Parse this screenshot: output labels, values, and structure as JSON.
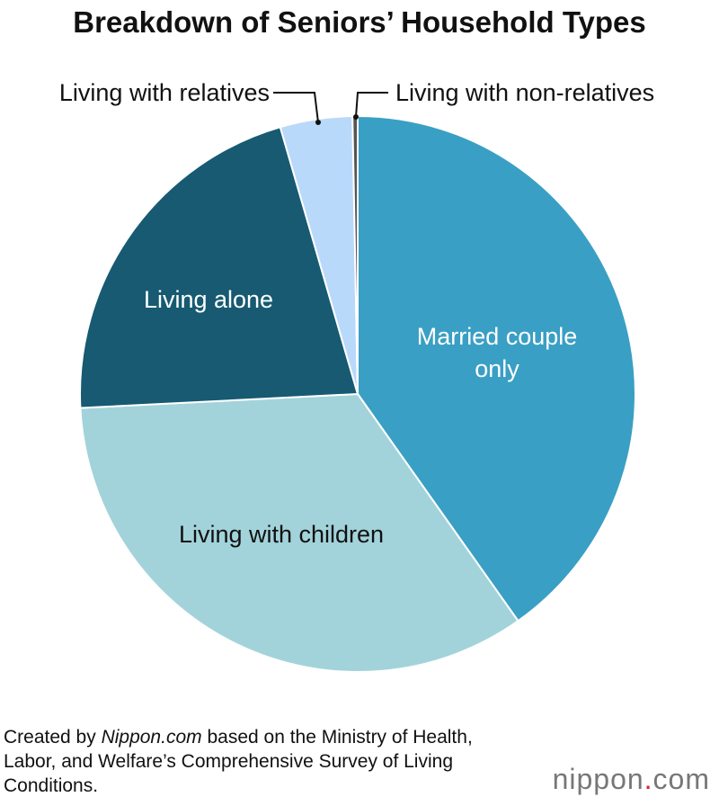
{
  "chart_data": {
    "type": "pie",
    "title": "Breakdown of Seniors’ Household Types",
    "categories": [
      "Married couple only",
      "Living with children",
      "Living alone",
      "Living with relatives",
      "Living with non-relatives"
    ],
    "values": [
      40.2,
      34.0,
      21.3,
      4.2,
      0.3
    ],
    "colors": [
      "#3a9fc4",
      "#a2d3da",
      "#175a72",
      "#b9d9fb",
      "#555555"
    ],
    "label_colors": [
      "#ffffff",
      "#111111",
      "#ffffff",
      "#111111",
      "#111111"
    ]
  },
  "source": {
    "prefix": "Created by ",
    "site": "Nippon.com",
    "suffix": " based on the Ministry of Health, Labor, and Welfare’s Comprehensive Survey of Living Conditions."
  },
  "logo": {
    "name": "nippon",
    "dot": ".",
    "tld": "com"
  }
}
